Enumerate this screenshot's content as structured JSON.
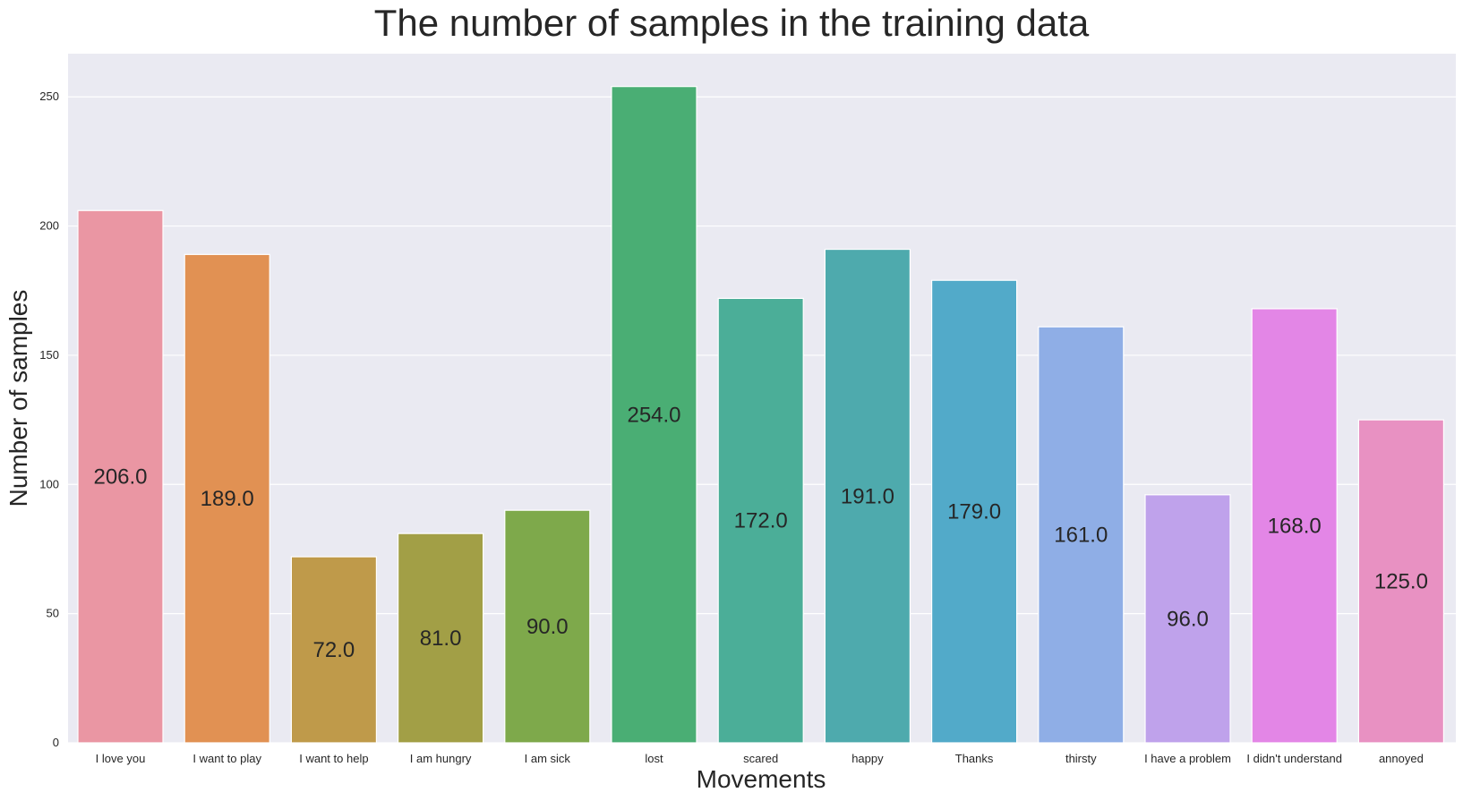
{
  "chart_data": {
    "type": "bar",
    "title": "The number of samples in the training data",
    "xlabel": "Movements",
    "ylabel": "Number of samples",
    "categories": [
      "I love you",
      "I want to play",
      "I want to help",
      "I am hungry",
      "I am sick",
      "lost",
      "scared",
      "happy",
      "Thanks",
      "thirsty",
      "I have a problem",
      "I didn't understand",
      "annoyed"
    ],
    "values": [
      206,
      189,
      72,
      81,
      90,
      254,
      172,
      191,
      179,
      161,
      96,
      168,
      125
    ],
    "value_labels": [
      "206.0",
      "189.0",
      "72.0",
      "81.0",
      "90.0",
      "254.0",
      "172.0",
      "191.0",
      "179.0",
      "161.0",
      "96.0",
      "168.0",
      "125.0"
    ],
    "colors": [
      "#ea96a3",
      "#e19153",
      "#bf9a4a",
      "#a29f46",
      "#7ea94b",
      "#4aae74",
      "#4bae98",
      "#4eaaad",
      "#52aac9",
      "#8faee6",
      "#bfa2eb",
      "#e386e6",
      "#e891c2"
    ],
    "ylim": [
      0,
      266.7
    ],
    "yticks": [
      0,
      50,
      100,
      150,
      200,
      250
    ],
    "ytick_labels": [
      "0",
      "50",
      "100",
      "150",
      "200",
      "250"
    ],
    "grid": true,
    "background": "#eaeaf2",
    "legend": "none"
  }
}
